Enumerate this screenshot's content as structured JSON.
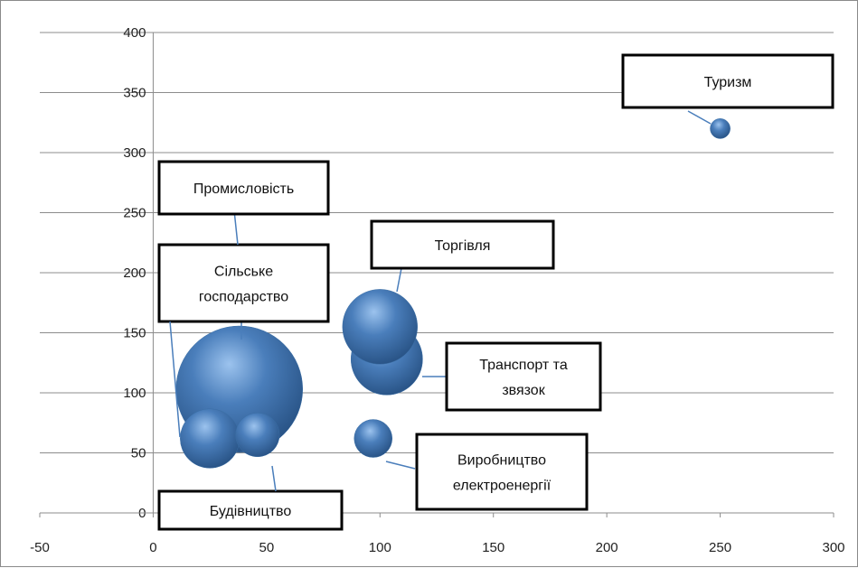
{
  "chart_data": {
    "type": "bubble",
    "xlim": [
      -50,
      300
    ],
    "ylim": [
      0,
      400
    ],
    "x_ticks": [
      -50,
      0,
      50,
      100,
      150,
      200,
      250,
      300
    ],
    "y_ticks": [
      0,
      50,
      100,
      150,
      200,
      250,
      300,
      350,
      400
    ],
    "grid": "horizontal",
    "colors": {
      "bubble": "#4a7ebb",
      "grid": "#8c8c8c",
      "axis": "#8c8c8c"
    },
    "points": [
      {
        "label": "Сільське господарство",
        "x": 38,
        "y": 103,
        "size": 100
      },
      {
        "label": "Будівництво",
        "x": 25,
        "y": 62,
        "size": 22
      },
      {
        "label": "Промисловість",
        "x": 46,
        "y": 65,
        "size": 12
      },
      {
        "label": "Торгівля",
        "x": 100,
        "y": 155,
        "size": 35
      },
      {
        "label": "Транспорт та звязок",
        "x": 103,
        "y": 128,
        "size": 32
      },
      {
        "label": "Виробництво електроенергії",
        "x": 97,
        "y": 62,
        "size": 9
      },
      {
        "label": "Туризм",
        "x": 250,
        "y": 320,
        "size": 2.5
      }
    ]
  }
}
